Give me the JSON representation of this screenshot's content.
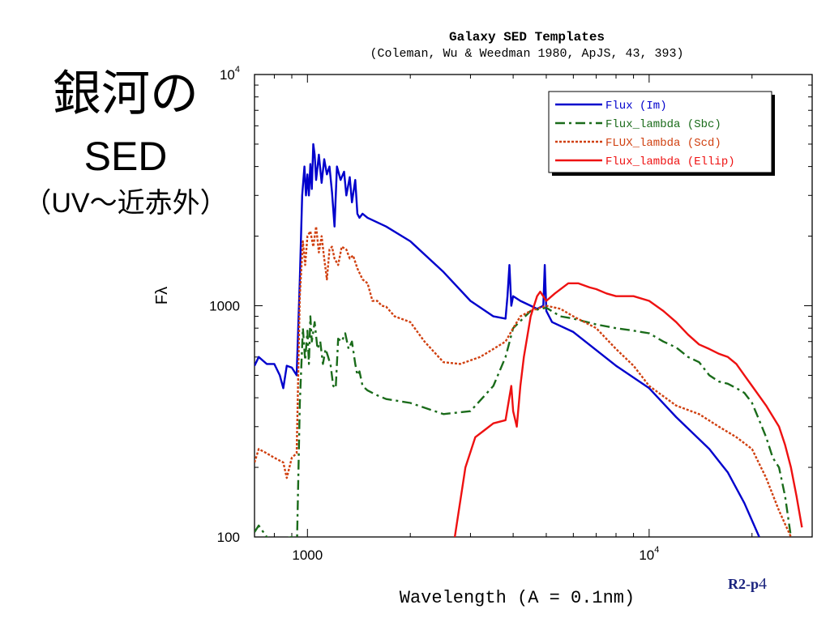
{
  "slide": {
    "title_line1": "銀河の",
    "title_line2": "SED",
    "title_line3": "（UV～近赤外）",
    "page_label_prefix": "R2-p",
    "page_label_number": "4"
  },
  "chart_data": {
    "type": "line",
    "title": "Galaxy SED Templates",
    "subtitle": "(Coleman, Wu & Weedman 1980, ApJS, 43, 393)",
    "xlabel": "Wavelength (A = 0.1nm)",
    "ylabel": "Fλ",
    "x_scale": "log",
    "y_scale": "log",
    "xlim": [
      700,
      30000
    ],
    "ylim": [
      100,
      10000
    ],
    "x_ticks": [
      {
        "value": 1000,
        "label": "1000"
      },
      {
        "value": 10000,
        "label": "10",
        "exponent": "4"
      }
    ],
    "y_ticks": [
      {
        "value": 100,
        "label": "100"
      },
      {
        "value": 1000,
        "label": "1000"
      },
      {
        "value": 10000,
        "label": "10",
        "exponent": "4"
      }
    ],
    "grid": false,
    "legend_position": "top-right",
    "series": [
      {
        "name": "Flux (Im)",
        "color": "#0000cc",
        "dash": "solid",
        "points": [
          [
            700,
            550
          ],
          [
            720,
            600
          ],
          [
            760,
            560
          ],
          [
            800,
            560
          ],
          [
            830,
            500
          ],
          [
            850,
            440
          ],
          [
            870,
            550
          ],
          [
            900,
            540
          ],
          [
            930,
            500
          ],
          [
            950,
            1300
          ],
          [
            965,
            3000
          ],
          [
            980,
            4000
          ],
          [
            990,
            3000
          ],
          [
            1000,
            3700
          ],
          [
            1010,
            3000
          ],
          [
            1020,
            4100
          ],
          [
            1030,
            3200
          ],
          [
            1040,
            5000
          ],
          [
            1050,
            4500
          ],
          [
            1060,
            3500
          ],
          [
            1080,
            4500
          ],
          [
            1100,
            3400
          ],
          [
            1120,
            4300
          ],
          [
            1140,
            3700
          ],
          [
            1160,
            4000
          ],
          [
            1180,
            3100
          ],
          [
            1200,
            2200
          ],
          [
            1220,
            4000
          ],
          [
            1250,
            3500
          ],
          [
            1280,
            3800
          ],
          [
            1300,
            3000
          ],
          [
            1330,
            3600
          ],
          [
            1350,
            2800
          ],
          [
            1380,
            3500
          ],
          [
            1400,
            2500
          ],
          [
            1420,
            2400
          ],
          [
            1450,
            2500
          ],
          [
            1500,
            2400
          ],
          [
            1700,
            2200
          ],
          [
            2000,
            1900
          ],
          [
            2500,
            1400
          ],
          [
            3000,
            1050
          ],
          [
            3500,
            900
          ],
          [
            3800,
            880
          ],
          [
            3850,
            1100
          ],
          [
            3900,
            1500
          ],
          [
            3950,
            1000
          ],
          [
            4000,
            1100
          ],
          [
            4200,
            1050
          ],
          [
            4500,
            1000
          ],
          [
            4700,
            970
          ],
          [
            4900,
            1000
          ],
          [
            4950,
            1500
          ],
          [
            5000,
            950
          ],
          [
            5200,
            850
          ],
          [
            6000,
            770
          ],
          [
            8000,
            550
          ],
          [
            10000,
            440
          ],
          [
            12000,
            330
          ],
          [
            15000,
            240
          ],
          [
            17000,
            190
          ],
          [
            19000,
            140
          ],
          [
            21000,
            100
          ]
        ]
      },
      {
        "name": "Flux_lambda (Sbc)",
        "color": "#1a6b1a",
        "dash": "12 5 3 5",
        "points": [
          [
            700,
            105
          ],
          [
            720,
            112
          ],
          [
            760,
            100
          ],
          [
            800,
            95
          ],
          [
            850,
            98
          ],
          [
            900,
            100
          ],
          [
            930,
            80
          ],
          [
            950,
            380
          ],
          [
            970,
            800
          ],
          [
            985,
            580
          ],
          [
            1000,
            780
          ],
          [
            1010,
            560
          ],
          [
            1020,
            900
          ],
          [
            1030,
            700
          ],
          [
            1050,
            850
          ],
          [
            1070,
            650
          ],
          [
            1090,
            700
          ],
          [
            1110,
            560
          ],
          [
            1130,
            650
          ],
          [
            1150,
            600
          ],
          [
            1170,
            550
          ],
          [
            1190,
            450
          ],
          [
            1210,
            440
          ],
          [
            1230,
            720
          ],
          [
            1260,
            700
          ],
          [
            1290,
            760
          ],
          [
            1320,
            650
          ],
          [
            1350,
            700
          ],
          [
            1380,
            560
          ],
          [
            1400,
            500
          ],
          [
            1420,
            520
          ],
          [
            1450,
            450
          ],
          [
            1500,
            430
          ],
          [
            1600,
            410
          ],
          [
            1700,
            395
          ],
          [
            2000,
            380
          ],
          [
            2500,
            340
          ],
          [
            3000,
            350
          ],
          [
            3500,
            450
          ],
          [
            3800,
            600
          ],
          [
            4000,
            800
          ],
          [
            4500,
            950
          ],
          [
            5000,
            980
          ],
          [
            5500,
            900
          ],
          [
            6000,
            880
          ],
          [
            7000,
            830
          ],
          [
            8000,
            800
          ],
          [
            9000,
            780
          ],
          [
            10000,
            760
          ],
          [
            11000,
            700
          ],
          [
            12000,
            660
          ],
          [
            13000,
            600
          ],
          [
            14000,
            570
          ],
          [
            15000,
            500
          ],
          [
            16000,
            470
          ],
          [
            17000,
            460
          ],
          [
            18000,
            440
          ],
          [
            19000,
            420
          ],
          [
            20000,
            380
          ],
          [
            21000,
            320
          ],
          [
            22000,
            270
          ],
          [
            23000,
            220
          ],
          [
            24000,
            200
          ],
          [
            25000,
            150
          ],
          [
            26000,
            100
          ]
        ]
      },
      {
        "name": "FLUX_lambda (Scd)",
        "color": "#d04010",
        "dash": "3 2",
        "points": [
          [
            700,
            210
          ],
          [
            720,
            240
          ],
          [
            760,
            230
          ],
          [
            800,
            220
          ],
          [
            850,
            210
          ],
          [
            870,
            180
          ],
          [
            900,
            220
          ],
          [
            930,
            230
          ],
          [
            950,
            1100
          ],
          [
            970,
            1900
          ],
          [
            985,
            1500
          ],
          [
            1000,
            2000
          ],
          [
            1020,
            2100
          ],
          [
            1040,
            1800
          ],
          [
            1060,
            2200
          ],
          [
            1080,
            1700
          ],
          [
            1100,
            2000
          ],
          [
            1120,
            1600
          ],
          [
            1140,
            1300
          ],
          [
            1160,
            1750
          ],
          [
            1180,
            1800
          ],
          [
            1200,
            1600
          ],
          [
            1230,
            1500
          ],
          [
            1260,
            1800
          ],
          [
            1300,
            1750
          ],
          [
            1330,
            1600
          ],
          [
            1360,
            1650
          ],
          [
            1400,
            1450
          ],
          [
            1450,
            1300
          ],
          [
            1500,
            1250
          ],
          [
            1550,
            1050
          ],
          [
            1600,
            1050
          ],
          [
            1650,
            1000
          ],
          [
            1700,
            990
          ],
          [
            1800,
            900
          ],
          [
            2000,
            850
          ],
          [
            2200,
            700
          ],
          [
            2500,
            570
          ],
          [
            2800,
            560
          ],
          [
            3200,
            600
          ],
          [
            3500,
            650
          ],
          [
            3800,
            700
          ],
          [
            4000,
            800
          ],
          [
            4200,
            900
          ],
          [
            4500,
            950
          ],
          [
            5000,
            1000
          ],
          [
            5500,
            970
          ],
          [
            6000,
            900
          ],
          [
            7000,
            800
          ],
          [
            8000,
            650
          ],
          [
            9000,
            550
          ],
          [
            10000,
            450
          ],
          [
            12000,
            370
          ],
          [
            14000,
            340
          ],
          [
            16000,
            300
          ],
          [
            18000,
            270
          ],
          [
            20000,
            240
          ],
          [
            22000,
            180
          ],
          [
            24000,
            130
          ],
          [
            26000,
            100
          ]
        ]
      },
      {
        "name": "Flux_lambda (Ellip)",
        "color": "#ee1111",
        "dash": "solid",
        "points": [
          [
            2700,
            100
          ],
          [
            2900,
            200
          ],
          [
            3100,
            270
          ],
          [
            3300,
            290
          ],
          [
            3500,
            310
          ],
          [
            3800,
            320
          ],
          [
            3950,
            450
          ],
          [
            4000,
            350
          ],
          [
            4100,
            300
          ],
          [
            4200,
            450
          ],
          [
            4300,
            600
          ],
          [
            4500,
            900
          ],
          [
            4700,
            1100
          ],
          [
            4800,
            1150
          ],
          [
            5000,
            1050
          ],
          [
            5300,
            1130
          ],
          [
            5800,
            1250
          ],
          [
            6200,
            1250
          ],
          [
            6700,
            1200
          ],
          [
            7000,
            1180
          ],
          [
            7500,
            1130
          ],
          [
            8000,
            1100
          ],
          [
            9000,
            1100
          ],
          [
            10000,
            1050
          ],
          [
            11000,
            950
          ],
          [
            12000,
            850
          ],
          [
            13000,
            750
          ],
          [
            14000,
            680
          ],
          [
            15000,
            650
          ],
          [
            16000,
            620
          ],
          [
            17000,
            600
          ],
          [
            18000,
            560
          ],
          [
            19000,
            500
          ],
          [
            20000,
            450
          ],
          [
            22000,
            370
          ],
          [
            24000,
            300
          ],
          [
            25000,
            250
          ],
          [
            26000,
            200
          ],
          [
            27000,
            150
          ],
          [
            28000,
            110
          ]
        ]
      }
    ]
  }
}
